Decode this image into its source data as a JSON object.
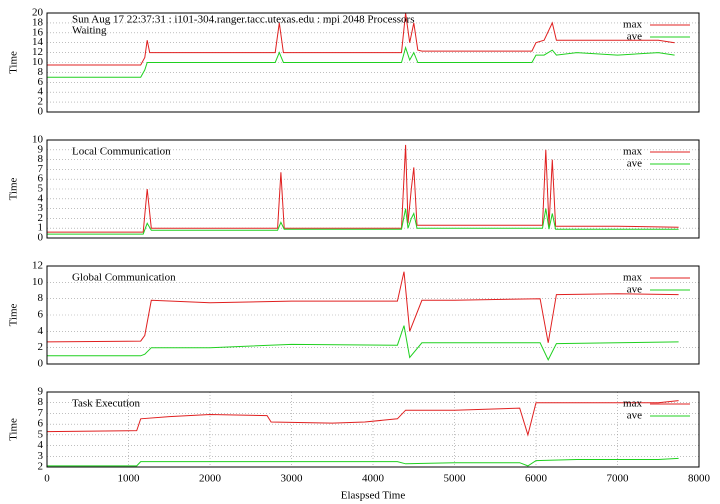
{
  "chart_data": [
    {
      "type": "line",
      "title": "Sun Aug 17 22:37:31 : i101-304.ranger.tacc.utexas.edu : mpi 2048 Processors",
      "label": "Waiting",
      "ylabel": "Time",
      "x": [
        0,
        1150,
        1200,
        1230,
        1260,
        1500,
        2000,
        2500,
        2800,
        2850,
        2900,
        3500,
        4000,
        4350,
        4400,
        4450,
        4500,
        4550,
        4600,
        5000,
        5500,
        5950,
        6000,
        6100,
        6200,
        6250,
        6500,
        7000,
        7500,
        7700
      ],
      "xlim": [
        0,
        8000
      ],
      "ylim": [
        0,
        20
      ],
      "yticks": [
        0,
        2,
        4,
        6,
        8,
        10,
        12,
        14,
        16,
        18,
        20
      ],
      "grid": "y",
      "legend": "upper right",
      "series": [
        {
          "name": "max",
          "color": "#e02020",
          "values": [
            9.5,
            9.5,
            11,
            14.5,
            12,
            12,
            12,
            12,
            12,
            18,
            12,
            12,
            12,
            12,
            20,
            14,
            18,
            12.5,
            12.3,
            12.3,
            12.3,
            12.3,
            14,
            14.5,
            18,
            14.5,
            14.5,
            14.5,
            14.5,
            14
          ]
        },
        {
          "name": "ave",
          "color": "#20d020",
          "values": [
            7,
            7,
            8.5,
            10,
            10,
            10,
            10,
            10,
            10,
            12,
            10,
            10,
            10,
            10,
            13,
            10.5,
            12,
            10,
            10,
            10,
            10,
            10,
            11.5,
            11.5,
            12.5,
            11.5,
            12,
            11.5,
            12,
            11.5
          ]
        }
      ]
    },
    {
      "type": "line",
      "label": "Local Communication",
      "ylabel": "Time",
      "x": [
        0,
        1180,
        1230,
        1280,
        2000,
        2830,
        2870,
        2910,
        4350,
        4400,
        4430,
        4470,
        4500,
        4540,
        5000,
        6080,
        6120,
        6160,
        6200,
        6240,
        7000,
        7750
      ],
      "xlim": [
        0,
        8000
      ],
      "ylim": [
        0,
        10
      ],
      "yticks": [
        0,
        1,
        2,
        3,
        4,
        5,
        6,
        7,
        8,
        9,
        10
      ],
      "grid": "y",
      "legend": "upper right",
      "series": [
        {
          "name": "max",
          "color": "#e02020",
          "values": [
            0.6,
            0.6,
            5,
            1,
            1,
            1,
            6.7,
            1,
            1,
            9.5,
            1.5,
            5,
            7.2,
            1.3,
            1.3,
            1.3,
            9,
            1.2,
            8,
            1.2,
            1.2,
            1.1
          ]
        },
        {
          "name": "ave",
          "color": "#20d020",
          "values": [
            0.4,
            0.4,
            1.5,
            0.8,
            0.8,
            0.8,
            1.6,
            0.9,
            0.9,
            3,
            1,
            2,
            2.5,
            1,
            1,
            1,
            3,
            0.9,
            2.5,
            0.9,
            0.9,
            0.9
          ]
        }
      ]
    },
    {
      "type": "line",
      "label": "Global Communication",
      "ylabel": "Time",
      "x": [
        0,
        1150,
        1200,
        1280,
        2000,
        3000,
        4300,
        4380,
        4450,
        4600,
        5000,
        6050,
        6150,
        6250,
        7000,
        7750
      ],
      "xlim": [
        0,
        8000
      ],
      "ylim": [
        0,
        12
      ],
      "yticks": [
        0,
        2,
        4,
        6,
        8,
        10,
        12
      ],
      "grid": "y",
      "legend": "upper right",
      "series": [
        {
          "name": "max",
          "color": "#e02020",
          "values": [
            2.7,
            2.8,
            3.5,
            7.8,
            7.5,
            7.7,
            7.7,
            11.3,
            4,
            7.8,
            7.8,
            8,
            2.6,
            8.5,
            8.6,
            8.5
          ]
        },
        {
          "name": "ave",
          "color": "#20d020",
          "values": [
            1,
            1,
            1.2,
            2,
            2,
            2.4,
            2.3,
            4.7,
            0.8,
            2.6,
            2.6,
            2.6,
            0.5,
            2.5,
            2.6,
            2.7
          ]
        }
      ]
    },
    {
      "type": "line",
      "label": "Task Execution",
      "ylabel": "Time",
      "xlabel": "Elaspsed Time",
      "x": [
        0,
        1100,
        1150,
        1500,
        2000,
        2700,
        2750,
        3500,
        3900,
        4300,
        4400,
        5000,
        5800,
        5900,
        6000,
        6500,
        7000,
        7500,
        7750
      ],
      "xlim": [
        0,
        8000
      ],
      "xticks": [
        0,
        1000,
        2000,
        3000,
        4000,
        5000,
        6000,
        7000,
        8000
      ],
      "ylim": [
        2,
        9
      ],
      "yticks": [
        2,
        3,
        4,
        5,
        6,
        7,
        8,
        9
      ],
      "grid": "both",
      "legend": "upper right",
      "series": [
        {
          "name": "max",
          "color": "#e02020",
          "values": [
            5.3,
            5.4,
            6.5,
            6.7,
            6.9,
            6.8,
            6.2,
            6.1,
            6.2,
            6.5,
            7.3,
            7.3,
            7.5,
            5,
            8,
            8,
            8,
            8,
            8.2
          ]
        },
        {
          "name": "ave",
          "color": "#20d020",
          "values": [
            2.1,
            2.1,
            2.5,
            2.5,
            2.5,
            2.5,
            2.5,
            2.5,
            2.5,
            2.5,
            2.3,
            2.4,
            2.4,
            2.1,
            2.6,
            2.7,
            2.7,
            2.7,
            2.8
          ]
        }
      ]
    }
  ]
}
